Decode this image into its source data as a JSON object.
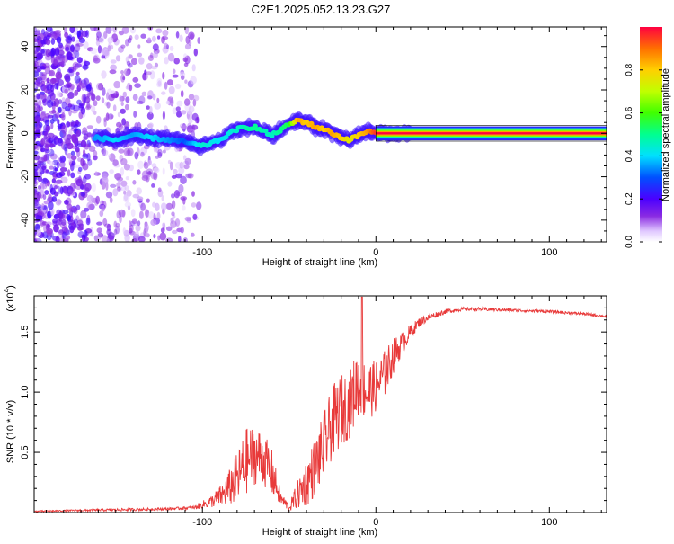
{
  "title": "C2E1.2025.052.13.23.G27",
  "chart_data": [
    {
      "type": "heatmap",
      "xlabel": "Height of straight line (km)",
      "ylabel": "Frequency (Hz)",
      "xlim": [
        -197,
        133
      ],
      "ylim": [
        -50,
        49
      ],
      "xticks": [
        -100,
        0,
        100
      ],
      "xtick_labels": [
        "-100",
        "0",
        "100"
      ],
      "yticks": [
        -40,
        -20,
        0,
        20,
        40
      ],
      "ytick_labels": [
        "-40",
        "-20",
        "0",
        "20",
        "40"
      ],
      "colorbar": {
        "label": "Normalized spectral amplitude",
        "range": [
          0,
          1
        ],
        "ticks": [
          0.0,
          0.2,
          0.4,
          0.6,
          0.8
        ],
        "tick_labels": [
          "0.0",
          "0.2",
          "0.4",
          "0.6",
          "0.8"
        ]
      },
      "ridge": {
        "x": [
          -162,
          -150,
          -140,
          -130,
          -120,
          -110,
          -100,
          -90,
          -80,
          -70,
          -60,
          -50,
          -45,
          -40,
          -35,
          -30,
          -25,
          -20,
          -15,
          -10,
          -5,
          0,
          10,
          20,
          133
        ],
        "y": [
          -2,
          -3,
          -1,
          -2,
          -3,
          -4,
          -6,
          -3,
          2,
          3,
          -1,
          4,
          6,
          5,
          3,
          2,
          0,
          -2,
          -3,
          -1,
          1,
          0,
          0,
          0,
          0
        ],
        "amplitude": [
          0.35,
          0.4,
          0.35,
          0.4,
          0.35,
          0.3,
          0.45,
          0.4,
          0.45,
          0.5,
          0.45,
          0.55,
          0.85,
          0.8,
          0.85,
          0.8,
          0.85,
          0.8,
          0.75,
          0.8,
          0.85,
          0.95,
          1.0,
          1.0,
          1.0
        ]
      }
    },
    {
      "type": "line",
      "xlabel": "Height of straight line (km)",
      "ylabel": "SNR (10 * v/v)",
      "scale_label": "(x10",
      "scale_exp": "4",
      "xlim": [
        -197,
        133
      ],
      "ylim": [
        0,
        1.8
      ],
      "xticks": [
        -100,
        0,
        100
      ],
      "xtick_labels": [
        "-100",
        "0",
        "100"
      ],
      "yticks": [
        0.5,
        1.0,
        1.5
      ],
      "ytick_labels": [
        "0.5",
        "1.0",
        "1.5"
      ],
      "series": [
        {
          "name": "SNR",
          "color": "#e83a3a",
          "envelope_x": [
            -197,
            -180,
            -160,
            -140,
            -120,
            -105,
            -95,
            -88,
            -80,
            -75,
            -70,
            -65,
            -60,
            -55,
            -50,
            -45,
            -40,
            -35,
            -30,
            -25,
            -20,
            -15,
            -10,
            -5,
            0,
            5,
            10,
            15,
            20,
            25,
            30,
            40,
            50,
            60,
            80,
            100,
            120,
            133
          ],
          "envelope_y": [
            0.01,
            0.015,
            0.02,
            0.025,
            0.03,
            0.04,
            0.09,
            0.15,
            0.28,
            0.42,
            0.48,
            0.45,
            0.33,
            0.12,
            0.04,
            0.15,
            0.25,
            0.38,
            0.55,
            0.75,
            0.85,
            0.9,
            1.1,
            1.0,
            1.05,
            1.15,
            1.3,
            1.4,
            1.5,
            1.58,
            1.62,
            1.67,
            1.69,
            1.69,
            1.68,
            1.67,
            1.65,
            1.63
          ],
          "noise_amplitude": [
            0.006,
            0.006,
            0.01,
            0.012,
            0.01,
            0.015,
            0.05,
            0.1,
            0.22,
            0.28,
            0.25,
            0.22,
            0.2,
            0.06,
            0.03,
            0.12,
            0.2,
            0.25,
            0.28,
            0.3,
            0.3,
            0.28,
            0.3,
            0.25,
            0.22,
            0.2,
            0.15,
            0.1,
            0.06,
            0.04,
            0.03,
            0.02,
            0.015,
            0.015,
            0.012,
            0.012,
            0.012,
            0.012
          ],
          "peak": {
            "x": -8,
            "y": 1.79
          }
        }
      ]
    }
  ]
}
